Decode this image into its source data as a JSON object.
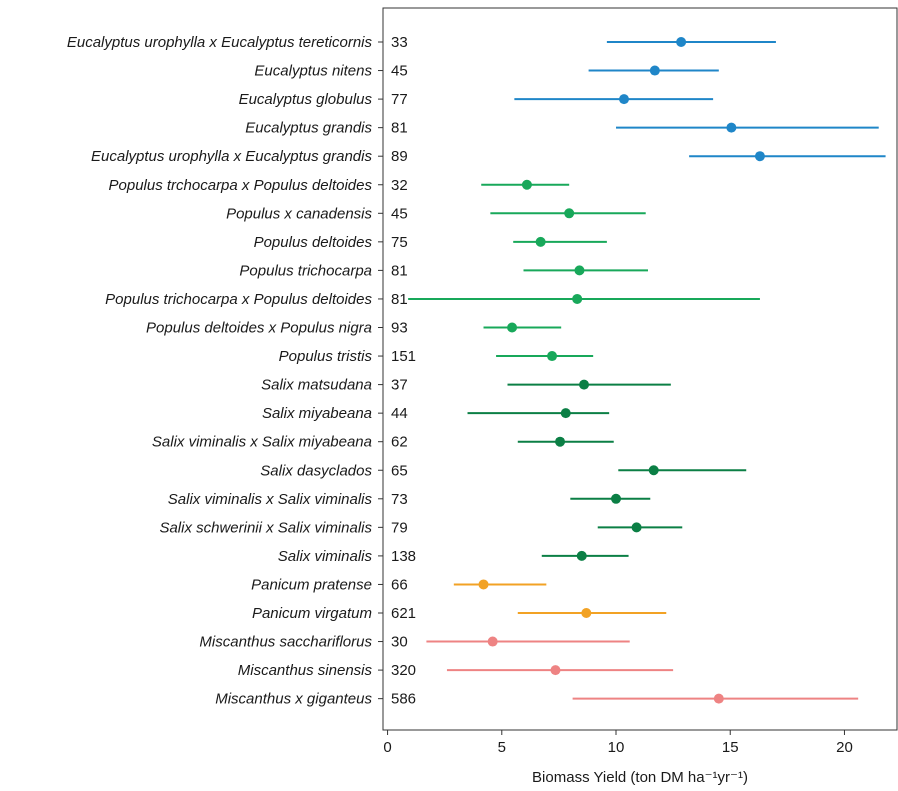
{
  "chart_data": {
    "type": "scatter",
    "xlabel": "Biomass Yield (ton DM ha⁻¹yr⁻¹)",
    "xlim": [
      -0.2,
      22.3
    ],
    "xticks": [
      0,
      5,
      10,
      15,
      20
    ],
    "grid": false,
    "groups": [
      {
        "genus": "Eucalyptus",
        "color": "#1f86c8"
      },
      {
        "genus": "Populus",
        "color": "#18a85a"
      },
      {
        "genus": "Salix",
        "color": "#0b7f45"
      },
      {
        "genus": "Panicum",
        "color": "#f2a224"
      },
      {
        "genus": "Miscanthus",
        "color": "#ee8383"
      }
    ],
    "points": [
      {
        "label": "Eucalyptus urophylla x Eucalyptus tereticornis",
        "n": "33",
        "group": "Eucalyptus",
        "mean": 12.85,
        "low": 9.6,
        "high": 17.0
      },
      {
        "label": "Eucalyptus nitens",
        "n": "45",
        "group": "Eucalyptus",
        "mean": 11.7,
        "low": 8.8,
        "high": 14.5
      },
      {
        "label": "Eucalyptus globulus",
        "n": "77",
        "group": "Eucalyptus",
        "mean": 10.35,
        "low": 5.55,
        "high": 14.25
      },
      {
        "label": "Eucalyptus grandis",
        "n": "81",
        "group": "Eucalyptus",
        "mean": 15.05,
        "low": 10.0,
        "high": 21.5
      },
      {
        "label": "Eucalyptus urophylla x Eucalyptus grandis",
        "n": "89",
        "group": "Eucalyptus",
        "mean": 16.3,
        "low": 13.2,
        "high": 21.8
      },
      {
        "label": "Populus trchocarpa x Populus deltoides",
        "n": "32",
        "group": "Populus",
        "mean": 6.1,
        "low": 4.1,
        "high": 7.95
      },
      {
        "label": "Populus x canadensis",
        "n": "45",
        "group": "Populus",
        "mean": 7.95,
        "low": 4.5,
        "high": 11.3
      },
      {
        "label": "Populus deltoides",
        "n": "75",
        "group": "Populus",
        "mean": 6.7,
        "low": 5.5,
        "high": 9.6
      },
      {
        "label": "Populus trichocarpa",
        "n": "81",
        "group": "Populus",
        "mean": 8.4,
        "low": 5.95,
        "high": 11.4
      },
      {
        "label": "Populus trichocarpa x Populus deltoides",
        "n": "81",
        "group": "Populus",
        "mean": 8.3,
        "low": 0.9,
        "high": 16.3
      },
      {
        "label": "Populus deltoides x Populus nigra",
        "n": "93",
        "group": "Populus",
        "mean": 5.45,
        "low": 4.2,
        "high": 7.6
      },
      {
        "label": "Populus tristis",
        "n": "151",
        "group": "Populus",
        "mean": 7.2,
        "low": 4.75,
        "high": 9.0
      },
      {
        "label": "Salix matsudana",
        "n": "37",
        "group": "Salix",
        "mean": 8.6,
        "low": 5.25,
        "high": 12.4
      },
      {
        "label": "Salix miyabeana",
        "n": "44",
        "group": "Salix",
        "mean": 7.8,
        "low": 3.5,
        "high": 9.7
      },
      {
        "label": "Salix viminalis x Salix miyabeana",
        "n": "62",
        "group": "Salix",
        "mean": 7.55,
        "low": 5.7,
        "high": 9.9
      },
      {
        "label": "Salix dasyclados",
        "n": "65",
        "group": "Salix",
        "mean": 11.65,
        "low": 10.1,
        "high": 15.7
      },
      {
        "label": "Salix viminalis x Salix viminalis",
        "n": "73",
        "group": "Salix",
        "mean": 10.0,
        "low": 8.0,
        "high": 11.5
      },
      {
        "label": "Salix schwerinii x Salix viminalis",
        "n": "79",
        "group": "Salix",
        "mean": 10.9,
        "low": 9.2,
        "high": 12.9
      },
      {
        "label": "Salix viminalis",
        "n": "138",
        "group": "Salix",
        "mean": 8.5,
        "low": 6.75,
        "high": 10.55
      },
      {
        "label": "Panicum pratense",
        "n": "66",
        "group": "Panicum",
        "mean": 4.2,
        "low": 2.9,
        "high": 6.95
      },
      {
        "label": "Panicum virgatum",
        "n": "621",
        "group": "Panicum",
        "mean": 8.7,
        "low": 5.7,
        "high": 12.2
      },
      {
        "label": "Miscanthus sacchariflorus",
        "n": "30",
        "group": "Miscanthus",
        "mean": 4.6,
        "low": 1.7,
        "high": 10.6
      },
      {
        "label": "Miscanthus sinensis",
        "n": "320",
        "group": "Miscanthus",
        "mean": 7.35,
        "low": 2.6,
        "high": 12.5
      },
      {
        "label": "Miscanthus x giganteus",
        "n": "586",
        "group": "Miscanthus",
        "mean": 14.5,
        "low": 8.1,
        "high": 20.6
      }
    ]
  }
}
